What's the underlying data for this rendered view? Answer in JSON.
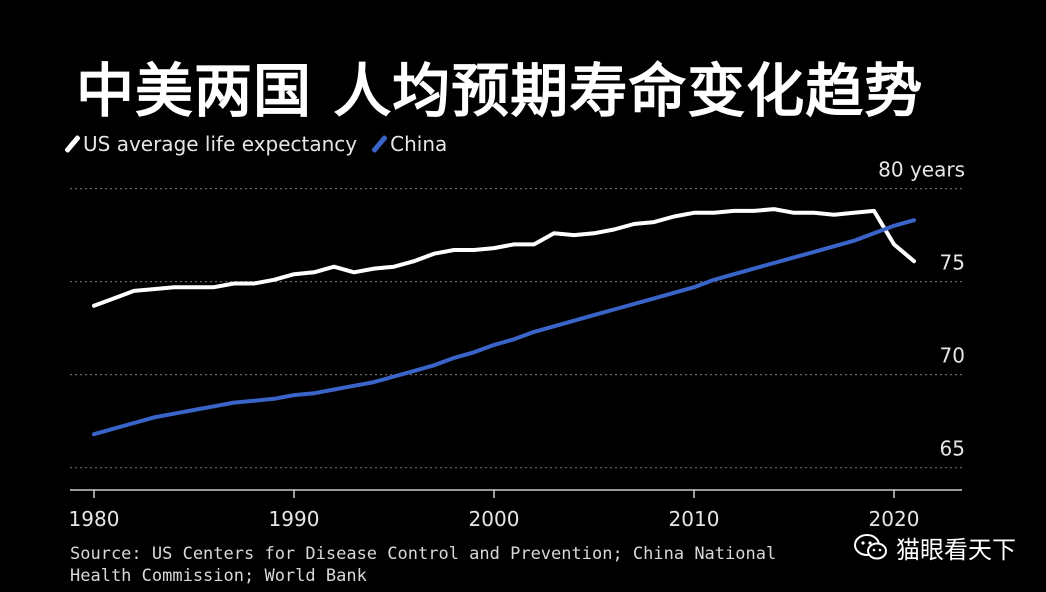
{
  "title": "中美两国 人均预期寿命变化趋势",
  "source": "Source: US Centers for Disease Control and Prevention; China National Health Commission; World Bank",
  "watermark": "猫眼看天下",
  "colors": {
    "background": "#000000",
    "us": "#ffffff",
    "china": "#3a64c8",
    "grid": "#666666"
  },
  "chart_data": {
    "type": "line",
    "x_ticks": [
      "1980",
      "1990",
      "2000",
      "2010",
      "2020"
    ],
    "y_ticks": [
      "65",
      "70",
      "75",
      "80 years"
    ],
    "ylim": [
      63.8,
      81
    ],
    "xlim": [
      1978.8,
      2023.4
    ],
    "grid": "horizontal dotted",
    "legend_position": "top-left",
    "series": [
      {
        "name": "US average life expectancy",
        "color": "#ffffff",
        "points": [
          [
            1980,
            73.7
          ],
          [
            1981,
            74.1
          ],
          [
            1982,
            74.5
          ],
          [
            1983,
            74.6
          ],
          [
            1984,
            74.7
          ],
          [
            1985,
            74.7
          ],
          [
            1986,
            74.7
          ],
          [
            1987,
            74.9
          ],
          [
            1988,
            74.9
          ],
          [
            1989,
            75.1
          ],
          [
            1990,
            75.4
          ],
          [
            1991,
            75.5
          ],
          [
            1992,
            75.8
          ],
          [
            1993,
            75.5
          ],
          [
            1994,
            75.7
          ],
          [
            1995,
            75.8
          ],
          [
            1996,
            76.1
          ],
          [
            1997,
            76.5
          ],
          [
            1998,
            76.7
          ],
          [
            1999,
            76.7
          ],
          [
            2000,
            76.8
          ],
          [
            2001,
            77.0
          ],
          [
            2002,
            77.0
          ],
          [
            2003,
            77.6
          ],
          [
            2004,
            77.5
          ],
          [
            2005,
            77.6
          ],
          [
            2006,
            77.8
          ],
          [
            2007,
            78.1
          ],
          [
            2008,
            78.2
          ],
          [
            2009,
            78.5
          ],
          [
            2010,
            78.7
          ],
          [
            2011,
            78.7
          ],
          [
            2012,
            78.8
          ],
          [
            2013,
            78.8
          ],
          [
            2014,
            78.9
          ],
          [
            2015,
            78.7
          ],
          [
            2016,
            78.7
          ],
          [
            2017,
            78.6
          ],
          [
            2018,
            78.7
          ],
          [
            2019,
            78.8
          ],
          [
            2020,
            77.0
          ],
          [
            2021,
            76.1
          ]
        ]
      },
      {
        "name": "China",
        "color": "#3a64c8",
        "points": [
          [
            1980,
            66.8
          ],
          [
            1981,
            67.1
          ],
          [
            1982,
            67.4
          ],
          [
            1983,
            67.7
          ],
          [
            1984,
            67.9
          ],
          [
            1985,
            68.1
          ],
          [
            1986,
            68.3
          ],
          [
            1987,
            68.5
          ],
          [
            1988,
            68.6
          ],
          [
            1989,
            68.7
          ],
          [
            1990,
            68.9
          ],
          [
            1991,
            69.0
          ],
          [
            1992,
            69.2
          ],
          [
            1993,
            69.4
          ],
          [
            1994,
            69.6
          ],
          [
            1995,
            69.9
          ],
          [
            1996,
            70.2
          ],
          [
            1997,
            70.5
          ],
          [
            1998,
            70.9
          ],
          [
            1999,
            71.2
          ],
          [
            2000,
            71.6
          ],
          [
            2001,
            71.9
          ],
          [
            2002,
            72.3
          ],
          [
            2003,
            72.6
          ],
          [
            2004,
            72.9
          ],
          [
            2005,
            73.2
          ],
          [
            2006,
            73.5
          ],
          [
            2007,
            73.8
          ],
          [
            2008,
            74.1
          ],
          [
            2009,
            74.4
          ],
          [
            2010,
            74.7
          ],
          [
            2011,
            75.1
          ],
          [
            2012,
            75.4
          ],
          [
            2013,
            75.7
          ],
          [
            2014,
            76.0
          ],
          [
            2015,
            76.3
          ],
          [
            2016,
            76.6
          ],
          [
            2017,
            76.9
          ],
          [
            2018,
            77.2
          ],
          [
            2019,
            77.6
          ],
          [
            2020,
            78.0
          ],
          [
            2021,
            78.3
          ]
        ]
      }
    ]
  }
}
